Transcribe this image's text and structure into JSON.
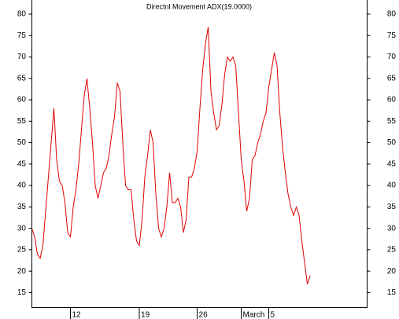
{
  "chart_data": {
    "type": "line",
    "title": "Directnl Movement ADX(19.0000)",
    "x": [
      0,
      1,
      2,
      3,
      4,
      5,
      6,
      7,
      8,
      9,
      10,
      11,
      12,
      13,
      14,
      15,
      16,
      17,
      18,
      19,
      20,
      21,
      22,
      23,
      24,
      25,
      26,
      27,
      28,
      29,
      30,
      31,
      32,
      33,
      34,
      35,
      36,
      37,
      38,
      39,
      40,
      41,
      42,
      43,
      44,
      45,
      46,
      47,
      48,
      49,
      50,
      51,
      52,
      53,
      54,
      55,
      56,
      57,
      58,
      59,
      60,
      61,
      62,
      63,
      64,
      65,
      66,
      67,
      68,
      69,
      70,
      71,
      72,
      73,
      74,
      75,
      76,
      77,
      78,
      79,
      80,
      81,
      82,
      83,
      84,
      85,
      86,
      87,
      88,
      89,
      90,
      91,
      92,
      93,
      94,
      95,
      96,
      97,
      98,
      99,
      100,
      101
    ],
    "series": [
      {
        "name": "ADX",
        "color": "#e00000",
        "values": [
          30,
          28,
          24,
          23,
          26,
          34,
          42,
          50,
          58,
          46,
          41,
          40,
          36,
          29,
          28,
          35,
          39,
          45,
          53,
          61,
          65,
          58,
          50,
          40,
          37,
          40,
          43,
          44,
          47,
          52,
          56,
          64,
          62,
          50,
          40,
          39,
          39,
          32,
          27,
          26,
          32,
          42,
          47,
          53,
          50,
          38,
          30,
          28,
          30,
          35,
          43,
          36,
          36,
          37,
          35,
          29,
          32,
          42,
          42,
          44,
          48,
          58,
          67,
          73,
          77,
          62,
          57,
          53,
          54,
          59,
          66,
          70,
          69,
          70,
          68,
          57,
          46,
          41,
          34,
          37,
          46,
          47,
          50,
          52,
          55,
          57,
          63,
          67,
          71,
          68,
          57,
          49,
          43,
          38,
          35,
          33,
          35,
          33,
          27,
          22,
          17,
          19
        ]
      }
    ],
    "xlim": [
      0,
      121.7
    ],
    "xticks": [
      {
        "value": 14,
        "label": "12"
      },
      {
        "value": 39,
        "label": "19"
      },
      {
        "value": 60,
        "label": "26"
      },
      {
        "value": 76,
        "label": "March"
      },
      {
        "value": 86,
        "label": "5"
      }
    ],
    "ylim": [
      11.5,
      83.3
    ],
    "yticks": [
      15,
      20,
      25,
      30,
      35,
      40,
      45,
      50,
      55,
      60,
      65,
      70,
      75,
      80
    ],
    "y2lim": [
      11.5,
      83.3
    ],
    "y2ticks": [
      15,
      20,
      25,
      30,
      35,
      40,
      45,
      50,
      55,
      60,
      65,
      70,
      75,
      80
    ]
  }
}
